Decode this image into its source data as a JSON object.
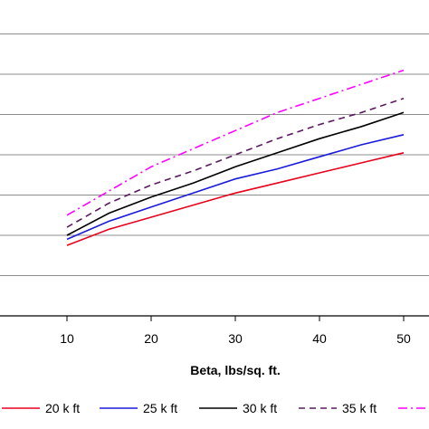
{
  "chart_data": {
    "type": "line",
    "title": "",
    "xlabel": "Beta, lbs/sq. ft.",
    "ylabel": "",
    "x": [
      10,
      15,
      20,
      25,
      30,
      35,
      40,
      45,
      50
    ],
    "x_ticks": [
      10,
      20,
      30,
      40,
      50
    ],
    "xlim": [
      0,
      50
    ],
    "ylim": [
      0,
      8
    ],
    "grid": "horizontal",
    "legend_position": "bottom",
    "series": [
      {
        "name": "20 k ft",
        "color": "#e8001c",
        "dash": "solid",
        "values": [
          1.75,
          2.15,
          2.45,
          2.75,
          3.05,
          3.3,
          3.55,
          3.8,
          4.05
        ]
      },
      {
        "name": "25 k ft",
        "color": "#1a1adc",
        "dash": "solid",
        "values": [
          1.9,
          2.35,
          2.7,
          3.05,
          3.4,
          3.65,
          3.95,
          4.25,
          4.5
        ]
      },
      {
        "name": "30 k ft",
        "color": "#000000",
        "dash": "solid",
        "values": [
          2.0,
          2.55,
          2.95,
          3.3,
          3.7,
          4.05,
          4.4,
          4.7,
          5.05
        ]
      },
      {
        "name": "35 k ft",
        "color": "#5a1a60",
        "dash": "dash",
        "values": [
          2.2,
          2.8,
          3.25,
          3.6,
          4.0,
          4.4,
          4.75,
          5.05,
          5.4
        ]
      },
      {
        "name": "",
        "color": "#ff00ff",
        "dash": "dashdot",
        "values": [
          2.5,
          3.1,
          3.7,
          4.15,
          4.6,
          5.05,
          5.4,
          5.75,
          6.1
        ]
      }
    ]
  }
}
